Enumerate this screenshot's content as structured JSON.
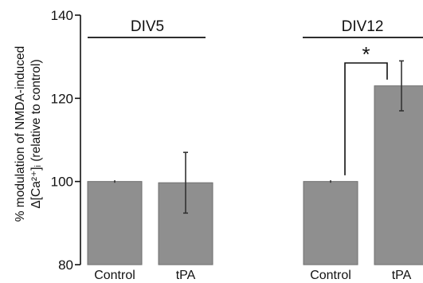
{
  "chart_data": {
    "type": "bar",
    "ylabel_line1": "% modulation of NMDA-induced",
    "ylabel_line2": "Δ[Ca²⁺]ᵢ (relative to control)",
    "ylim": [
      80,
      140
    ],
    "yticks": [
      80,
      100,
      120,
      140
    ],
    "grid": false,
    "groups": [
      {
        "name": "DIV5",
        "categories": [
          "Control",
          "tPA"
        ],
        "values": [
          100,
          99.7
        ],
        "errors": [
          0.3,
          7.3
        ]
      },
      {
        "name": "DIV12",
        "categories": [
          "Control",
          "tPA"
        ],
        "values": [
          100,
          123
        ],
        "errors": [
          0.3,
          6
        ]
      }
    ],
    "annotations": [
      {
        "text": "*",
        "group": "DIV12",
        "between": [
          "Control",
          "tPA"
        ]
      }
    ],
    "colors": {
      "bar": "#8f8f8f",
      "axis": "#111111"
    }
  }
}
